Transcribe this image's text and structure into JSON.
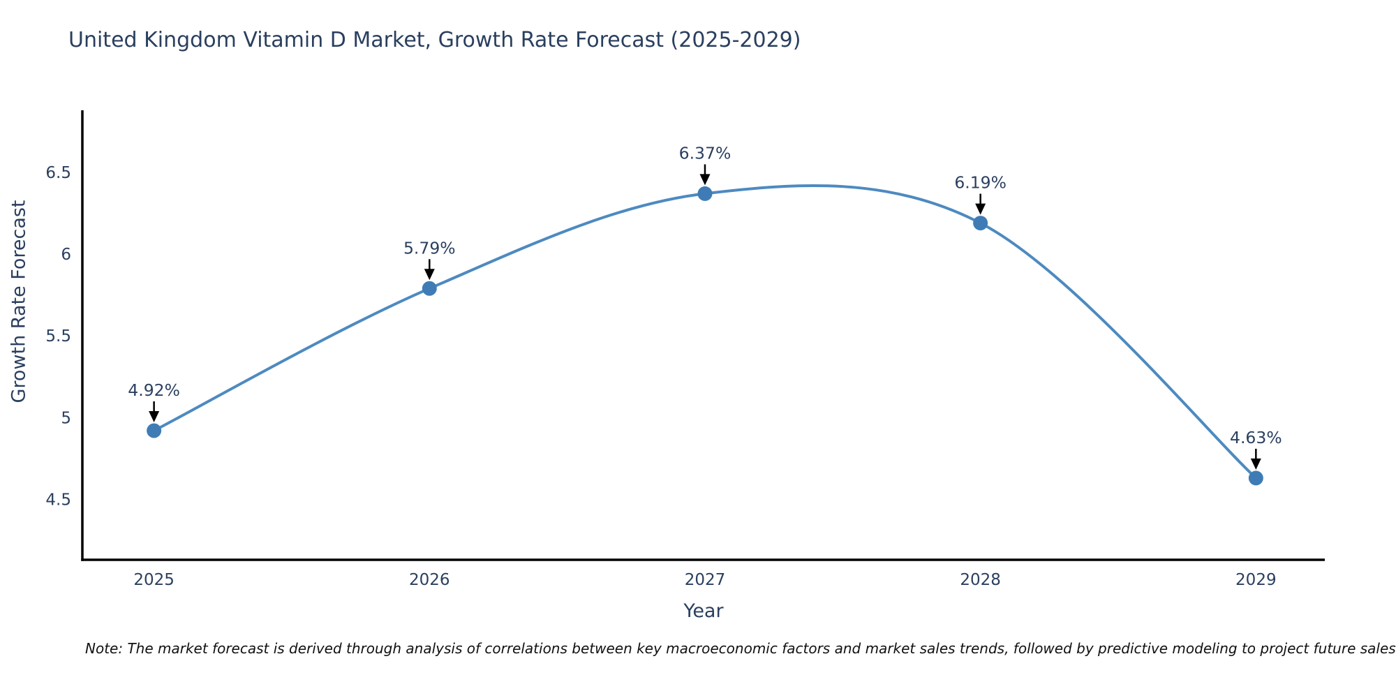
{
  "title": "United Kingdom Vitamin D Market, Growth Rate Forecast (2025-2029)",
  "chart_data": {
    "type": "line",
    "title": "United Kingdom Vitamin D Market, Growth Rate Forecast (2025-2029)",
    "x": [
      2025,
      2026,
      2027,
      2028,
      2029
    ],
    "series": [
      {
        "name": "Growth Rate Forecast",
        "values": [
          4.92,
          5.79,
          6.37,
          6.19,
          4.63
        ]
      }
    ],
    "point_labels": [
      "4.92%",
      "5.79%",
      "6.37%",
      "6.19%",
      "4.63%"
    ],
    "xlabel": "Year",
    "ylabel": "Growth Rate Forecast",
    "xticks": [
      "2025",
      "2026",
      "2027",
      "2028",
      "2029"
    ],
    "yticks": [
      "4.5",
      "5",
      "5.5",
      "6",
      "6.5"
    ],
    "xlim": [
      2024.74,
      2029.25
    ],
    "ylim": [
      4.13,
      6.88
    ],
    "line_shape": "spline",
    "grid": false,
    "legend": "none",
    "line_color": "#4d8ac0",
    "marker_color": "#3f7cb6",
    "annotation_arrow_color": "#000000",
    "axis_line_color": "#000000",
    "tick_label_color": "#2a3f5f",
    "point_label_color": "#2a3f5f"
  },
  "note": "Note: The market forecast is derived through analysis of correlations between key macroeconomic factors and market sales trends, followed by predictive modeling to project future sales",
  "colors": {
    "background": "#ffffff",
    "text": "#2a3f5f",
    "note_text": "#111111"
  }
}
